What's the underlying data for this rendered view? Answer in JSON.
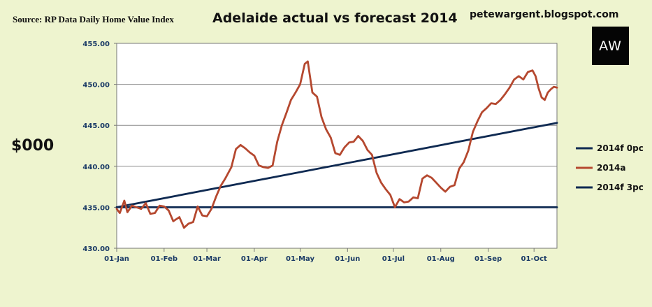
{
  "header": {
    "source": "Source: RP Data Daily Home Value Index",
    "blog": "petewargent.blogspot.com",
    "logo_text": "AW"
  },
  "chart_data": {
    "type": "line",
    "title": "Adelaide actual vs forecast 2014",
    "ylabel": "$000",
    "xlabel": "",
    "ylim": [
      430,
      455
    ],
    "yticks": [
      "430.00",
      "435.00",
      "440.00",
      "445.00",
      "450.00",
      "455.00"
    ],
    "xlim": [
      "2014-01-01",
      "2014-10-16"
    ],
    "xticks": [
      {
        "date": "2014-01-01",
        "label": "01-Jan"
      },
      {
        "date": "2014-02-01",
        "label": "01-Feb"
      },
      {
        "date": "2014-03-01",
        "label": "01-Mar"
      },
      {
        "date": "2014-04-01",
        "label": "01-Apr"
      },
      {
        "date": "2014-05-01",
        "label": "01-May"
      },
      {
        "date": "2014-06-01",
        "label": "01-Jun"
      },
      {
        "date": "2014-07-01",
        "label": "01-Jul"
      },
      {
        "date": "2014-08-01",
        "label": "01-Aug"
      },
      {
        "date": "2014-09-01",
        "label": "01-Sep"
      },
      {
        "date": "2014-10-01",
        "label": "01-Oct"
      }
    ],
    "grid": "horizontal",
    "legend_position": "right",
    "series": [
      {
        "name": "2014f 0pc",
        "color": "#0f2a52",
        "points": [
          [
            "2014-01-01",
            435.0
          ],
          [
            "2014-10-16",
            435.0
          ]
        ]
      },
      {
        "name": "2014a",
        "color": "#b5482f",
        "points": [
          [
            "2014-01-01",
            434.8
          ],
          [
            "2014-01-03",
            434.3
          ],
          [
            "2014-01-06",
            435.8
          ],
          [
            "2014-01-08",
            434.4
          ],
          [
            "2014-01-11",
            435.2
          ],
          [
            "2014-01-14",
            435.0
          ],
          [
            "2014-01-17",
            434.8
          ],
          [
            "2014-01-20",
            435.5
          ],
          [
            "2014-01-23",
            434.2
          ],
          [
            "2014-01-26",
            434.3
          ],
          [
            "2014-01-29",
            435.2
          ],
          [
            "2014-02-01",
            435.1
          ],
          [
            "2014-02-04",
            434.6
          ],
          [
            "2014-02-07",
            433.3
          ],
          [
            "2014-02-11",
            433.8
          ],
          [
            "2014-02-14",
            432.5
          ],
          [
            "2014-02-17",
            433.0
          ],
          [
            "2014-02-20",
            433.2
          ],
          [
            "2014-02-23",
            435.1
          ],
          [
            "2014-02-26",
            434.0
          ],
          [
            "2014-03-01",
            433.9
          ],
          [
            "2014-03-04",
            434.8
          ],
          [
            "2014-03-07",
            436.3
          ],
          [
            "2014-03-10",
            437.6
          ],
          [
            "2014-03-13",
            438.5
          ],
          [
            "2014-03-17",
            439.9
          ],
          [
            "2014-03-20",
            442.1
          ],
          [
            "2014-03-23",
            442.6
          ],
          [
            "2014-03-26",
            442.2
          ],
          [
            "2014-03-29",
            441.7
          ],
          [
            "2014-04-01",
            441.3
          ],
          [
            "2014-04-04",
            440.1
          ],
          [
            "2014-04-07",
            439.9
          ],
          [
            "2014-04-10",
            439.8
          ],
          [
            "2014-04-13",
            440.1
          ],
          [
            "2014-04-16",
            443.0
          ],
          [
            "2014-04-19",
            445.0
          ],
          [
            "2014-04-22",
            446.5
          ],
          [
            "2014-04-25",
            448.1
          ],
          [
            "2014-04-28",
            449.0
          ],
          [
            "2014-05-01",
            450.0
          ],
          [
            "2014-05-04",
            452.5
          ],
          [
            "2014-05-06",
            452.8
          ],
          [
            "2014-05-09",
            449.0
          ],
          [
            "2014-05-12",
            448.5
          ],
          [
            "2014-05-15",
            446.0
          ],
          [
            "2014-05-18",
            444.5
          ],
          [
            "2014-05-21",
            443.5
          ],
          [
            "2014-05-24",
            441.6
          ],
          [
            "2014-05-27",
            441.4
          ],
          [
            "2014-05-30",
            442.3
          ],
          [
            "2014-06-02",
            442.9
          ],
          [
            "2014-06-05",
            443.0
          ],
          [
            "2014-06-08",
            443.7
          ],
          [
            "2014-06-11",
            443.1
          ],
          [
            "2014-06-14",
            442.0
          ],
          [
            "2014-06-17",
            441.4
          ],
          [
            "2014-06-20",
            439.2
          ],
          [
            "2014-06-23",
            438.0
          ],
          [
            "2014-06-26",
            437.2
          ],
          [
            "2014-06-29",
            436.5
          ],
          [
            "2014-07-02",
            435.0
          ],
          [
            "2014-07-05",
            436.0
          ],
          [
            "2014-07-08",
            435.6
          ],
          [
            "2014-07-11",
            435.7
          ],
          [
            "2014-07-14",
            436.2
          ],
          [
            "2014-07-17",
            436.1
          ],
          [
            "2014-07-20",
            438.5
          ],
          [
            "2014-07-23",
            438.9
          ],
          [
            "2014-07-26",
            438.6
          ],
          [
            "2014-07-29",
            438.0
          ],
          [
            "2014-08-01",
            437.4
          ],
          [
            "2014-08-04",
            436.9
          ],
          [
            "2014-08-07",
            437.5
          ],
          [
            "2014-08-10",
            437.7
          ],
          [
            "2014-08-13",
            439.7
          ],
          [
            "2014-08-16",
            440.5
          ],
          [
            "2014-08-19",
            441.9
          ],
          [
            "2014-08-22",
            444.2
          ],
          [
            "2014-08-25",
            445.5
          ],
          [
            "2014-08-28",
            446.6
          ],
          [
            "2014-08-31",
            447.1
          ],
          [
            "2014-09-03",
            447.7
          ],
          [
            "2014-09-06",
            447.6
          ],
          [
            "2014-09-09",
            448.1
          ],
          [
            "2014-09-12",
            448.8
          ],
          [
            "2014-09-15",
            449.6
          ],
          [
            "2014-09-18",
            450.6
          ],
          [
            "2014-09-21",
            451.0
          ],
          [
            "2014-09-24",
            450.6
          ],
          [
            "2014-09-27",
            451.5
          ],
          [
            "2014-09-30",
            451.7
          ],
          [
            "2014-10-02",
            451.0
          ],
          [
            "2014-10-04",
            449.5
          ],
          [
            "2014-10-06",
            448.4
          ],
          [
            "2014-10-08",
            448.1
          ],
          [
            "2014-10-10",
            449.0
          ],
          [
            "2014-10-12",
            449.4
          ],
          [
            "2014-10-14",
            449.7
          ],
          [
            "2014-10-16",
            449.6
          ]
        ]
      },
      {
        "name": "2014f 3pc",
        "color": "#0f2a52",
        "points": [
          [
            "2014-01-01",
            435.0
          ],
          [
            "2014-10-16",
            445.3
          ]
        ]
      }
    ]
  }
}
